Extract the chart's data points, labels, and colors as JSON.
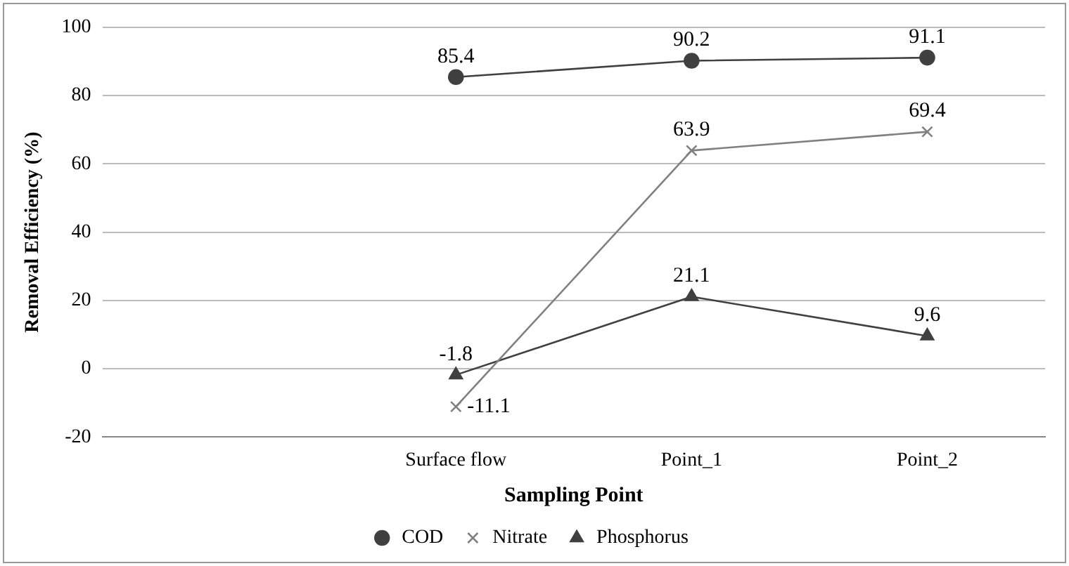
{
  "chart_data": {
    "type": "line",
    "xlabel": "Sampling Point",
    "ylabel": "Removal Efficiency (%)",
    "categories": [
      null,
      "Surface flow",
      "Point_1",
      "Point_2"
    ],
    "series": [
      {
        "name": "COD",
        "color": "#404040",
        "marker": "circle",
        "values": [
          null,
          85.4,
          90.2,
          91.1
        ]
      },
      {
        "name": "Nitrate",
        "color": "#808080",
        "marker": "cross",
        "values": [
          null,
          -11.1,
          63.9,
          69.4
        ]
      },
      {
        "name": "Phosphorus",
        "color": "#404040",
        "marker": "triangle",
        "values": [
          null,
          -1.8,
          21.1,
          9.6
        ]
      }
    ],
    "ylim": [
      -20,
      100
    ],
    "yticks": [
      -20,
      0,
      20,
      40,
      60,
      80,
      100
    ],
    "grid": "y",
    "legend": "bottom",
    "data_labels": true,
    "line_style": "solid"
  }
}
